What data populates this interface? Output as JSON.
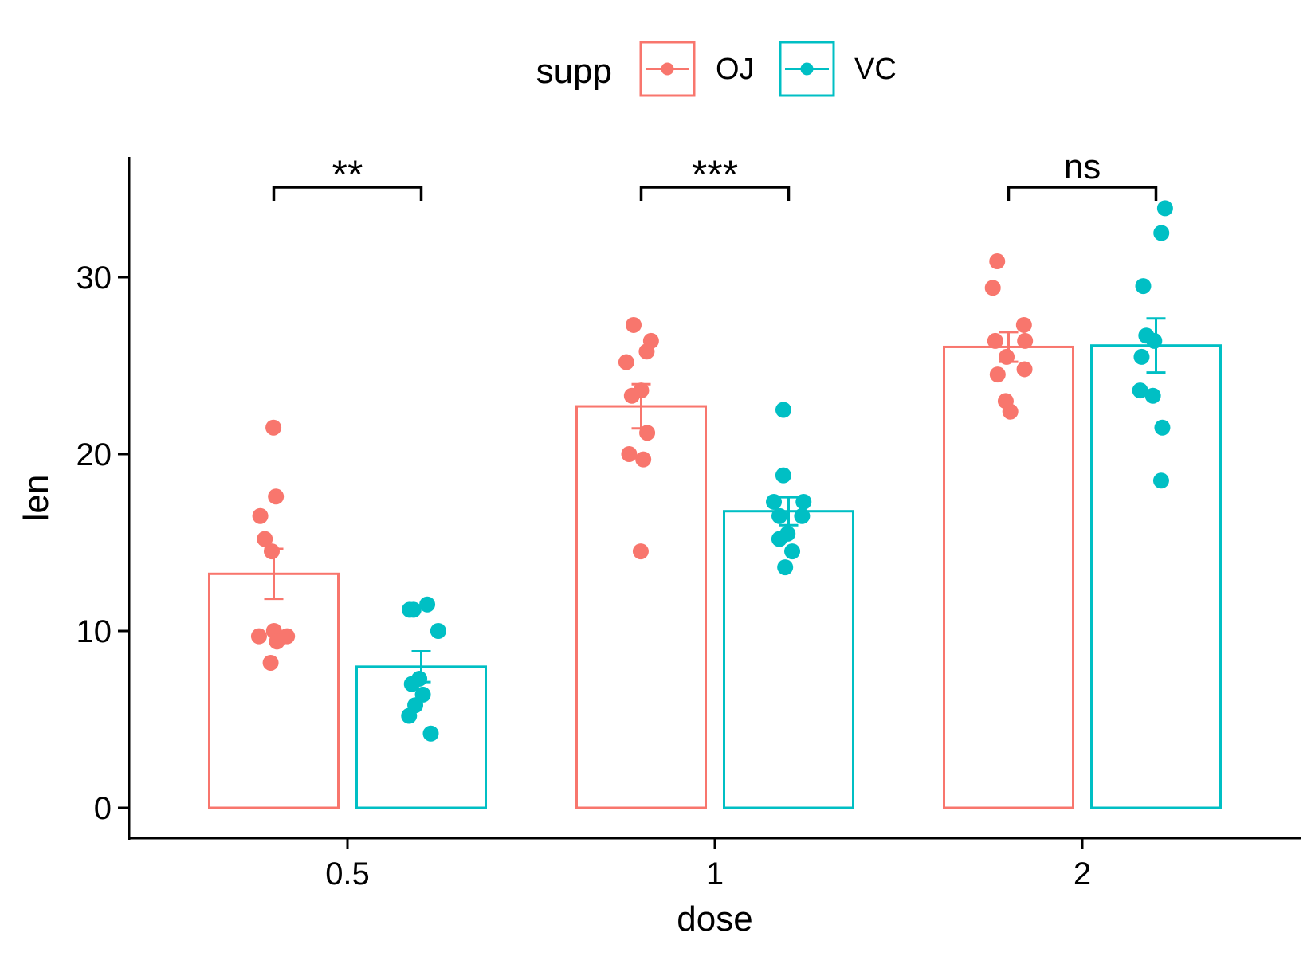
{
  "chart_data": {
    "type": "bar",
    "title": "",
    "xlabel": "dose",
    "ylabel": "len",
    "categories": [
      "0.5",
      "1",
      "2"
    ],
    "ylim": [
      -1.7,
      36.7
    ],
    "yticks": [
      0,
      10,
      20,
      30
    ],
    "grid": false,
    "legend": {
      "title": "supp",
      "position": "top",
      "entries": [
        "OJ",
        "VC"
      ]
    },
    "colors": {
      "OJ": "#F8766D",
      "VC": "#00BFC4",
      "axis": "#000000"
    },
    "series": [
      {
        "name": "OJ",
        "values": [
          13.23,
          22.7,
          26.06
        ],
        "error_low": [
          11.82,
          21.45,
          25.22
        ],
        "error_high": [
          14.64,
          23.95,
          26.9
        ],
        "points": [
          [
            21.5,
            17.6,
            16.5,
            15.2,
            14.5,
            10.0,
            9.7,
            9.7,
            9.4,
            8.2
          ],
          [
            27.3,
            26.4,
            25.8,
            25.2,
            23.6,
            23.3,
            21.2,
            20.0,
            19.7,
            14.5
          ],
          [
            30.9,
            29.4,
            27.3,
            26.4,
            26.4,
            25.5,
            24.8,
            24.5,
            23.0,
            22.4
          ]
        ]
      },
      {
        "name": "VC",
        "values": [
          7.98,
          16.77,
          26.14
        ],
        "error_low": [
          7.11,
          15.98,
          24.61
        ],
        "error_high": [
          8.85,
          17.56,
          27.67
        ],
        "points": [
          [
            11.5,
            11.2,
            11.2,
            10.0,
            7.3,
            7.0,
            6.4,
            5.8,
            5.2,
            4.2
          ],
          [
            22.5,
            18.8,
            17.3,
            17.3,
            16.5,
            16.5,
            15.5,
            15.2,
            14.5,
            13.6
          ],
          [
            33.9,
            32.5,
            29.5,
            26.7,
            26.4,
            25.5,
            23.6,
            23.3,
            21.5,
            18.5
          ]
        ]
      }
    ],
    "significance": [
      {
        "category": "0.5",
        "label": "**"
      },
      {
        "category": "1",
        "label": "***"
      },
      {
        "category": "2",
        "label": "ns"
      }
    ]
  }
}
